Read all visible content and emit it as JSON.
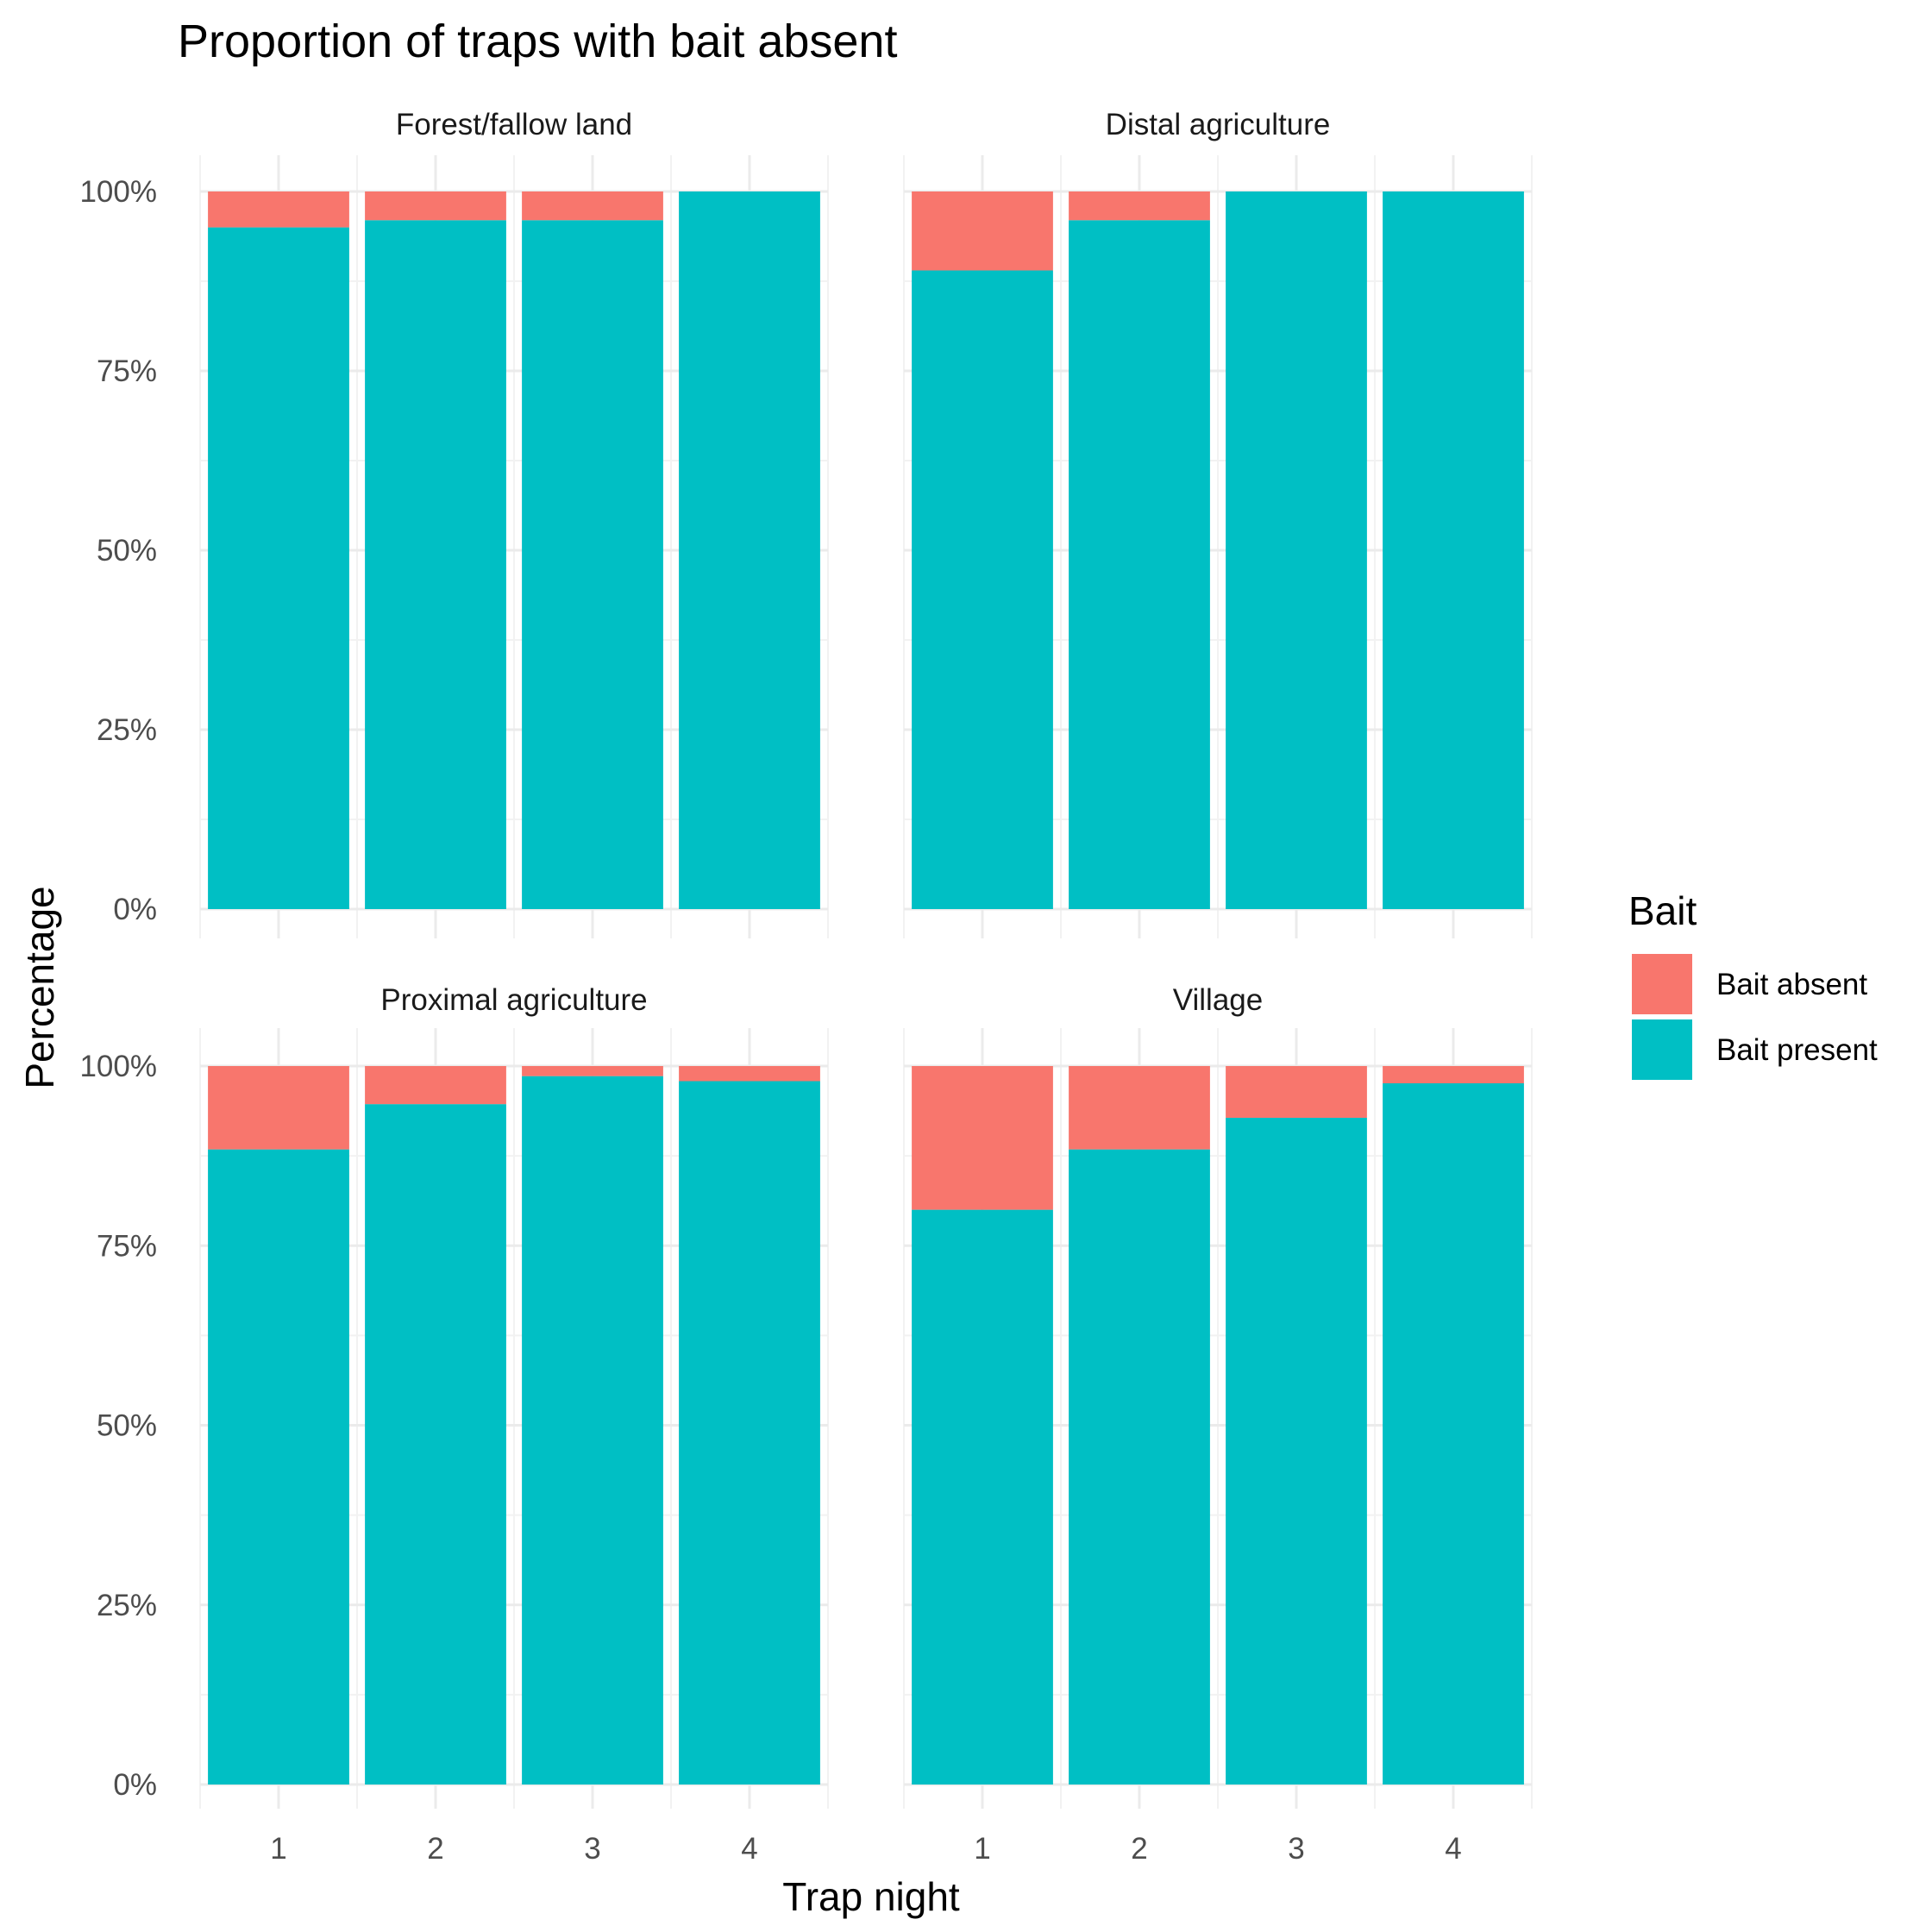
{
  "chart_data": {
    "type": "bar",
    "stacked": true,
    "title": "Proportion of traps with bait absent",
    "xlabel": "Trap night",
    "ylabel": "Percentage",
    "categories": [
      "1",
      "2",
      "3",
      "4"
    ],
    "ylim": [
      0,
      100
    ],
    "yticks": [
      0,
      25,
      50,
      75,
      100
    ],
    "ytick_labels": [
      "0%",
      "25%",
      "50%",
      "75%",
      "100%"
    ],
    "legend": {
      "title": "Bait",
      "placement": "right",
      "entries": [
        {
          "label": "Bait absent",
          "color": "#F8766D"
        },
        {
          "label": "Bait present",
          "color": "#00BFC4"
        }
      ]
    },
    "grid": true,
    "facets": [
      {
        "name": "Forest/fallow land",
        "series": [
          {
            "name": "Bait absent",
            "values": [
              5,
              4,
              4,
              0
            ]
          },
          {
            "name": "Bait present",
            "values": [
              95,
              96,
              96,
              100
            ]
          }
        ]
      },
      {
        "name": "Distal agriculture",
        "series": [
          {
            "name": "Bait absent",
            "values": [
              11,
              4,
              0,
              0
            ]
          },
          {
            "name": "Bait present",
            "values": [
              89,
              96,
              100,
              100
            ]
          }
        ]
      },
      {
        "name": "Proximal agriculture",
        "series": [
          {
            "name": "Bait absent",
            "values": [
              11.6,
              5.3,
              1.4,
              2.1
            ]
          },
          {
            "name": "Bait present",
            "values": [
              88.4,
              94.7,
              98.6,
              97.9
            ]
          }
        ]
      },
      {
        "name": "Village",
        "series": [
          {
            "name": "Bait absent",
            "values": [
              20,
              11.6,
              7.2,
              2.4
            ]
          },
          {
            "name": "Bait present",
            "values": [
              80,
              88.4,
              92.8,
              97.6
            ]
          }
        ]
      }
    ]
  }
}
